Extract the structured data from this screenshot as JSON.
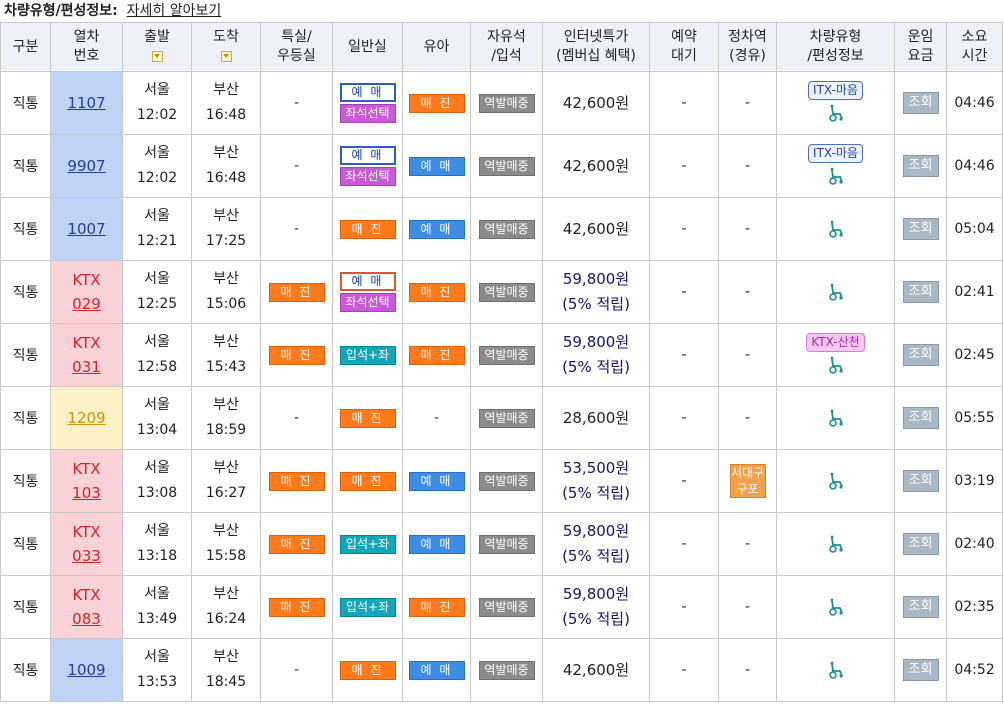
{
  "header": {
    "title": "차량유형/편성정보:",
    "detail_link": "자세히 알아보기"
  },
  "columns": {
    "type": "구분",
    "train_no_1": "열차",
    "train_no_2": "번호",
    "depart": "출발",
    "arrive": "도착",
    "special_1": "특실/",
    "special_2": "우등실",
    "general": "일반실",
    "infant": "유아",
    "free_1": "자유석",
    "free_2": "/입석",
    "internet_1": "인터넷특가",
    "internet_2": "(멤버십 혜택)",
    "reserve_1": "예약",
    "reserve_2": "대기",
    "stop_1": "정차역",
    "stop_2": "(경유)",
    "vehicle_1": "차량유형",
    "vehicle_2": "/편성정보",
    "fare_1": "운임",
    "fare_2": "요금",
    "duration_1": "소요",
    "duration_2": "시간"
  },
  "labels": {
    "reserve": "예 매",
    "soldout": "매 진",
    "seat_select": "좌석선택",
    "standing_seat": "입석+좌석",
    "onsite": "역발매중",
    "lookup": "조회",
    "dash": "-",
    "points": "(5% 적립)",
    "wheelchair_icon": "wheelchair-icon"
  },
  "colors": {
    "itx_bg": "#bfd3f5",
    "ktx_bg": "#f8d2d7",
    "mugunghwa_bg": "#fdf1c6",
    "soldout": "#ff7a1a",
    "reserve": "#3d8de4"
  },
  "rows": [
    {
      "kind": "직통",
      "line1": "",
      "line2": "1107",
      "class": "itx",
      "dep_station": "서울",
      "dep_time": "12:02",
      "arr_station": "부산",
      "arr_time": "16:48",
      "special": "-",
      "general": "reserve_outline_seat",
      "infant": "soldout",
      "free": "onsite",
      "price": "42,600원",
      "points": "",
      "waitlist": "-",
      "via": "-",
      "vehicle_badge": "ITX-마음",
      "vehicle_badge_type": "itx",
      "duration": "04:46"
    },
    {
      "kind": "직통",
      "line1": "",
      "line2": "9907",
      "class": "itx",
      "dep_station": "서울",
      "dep_time": "12:02",
      "arr_station": "부산",
      "arr_time": "16:48",
      "special": "-",
      "general": "reserve_outline_seat",
      "infant": "reserve",
      "free": "onsite",
      "price": "42,600원",
      "points": "",
      "waitlist": "-",
      "via": "-",
      "vehicle_badge": "ITX-마음",
      "vehicle_badge_type": "itx",
      "duration": "04:46"
    },
    {
      "kind": "직통",
      "line1": "",
      "line2": "1007",
      "class": "itx",
      "dep_station": "서울",
      "dep_time": "12:21",
      "arr_station": "부산",
      "arr_time": "17:25",
      "special": "-",
      "general": "soldout",
      "infant": "reserve",
      "free": "onsite",
      "price": "42,600원",
      "points": "",
      "waitlist": "-",
      "via": "-",
      "vehicle_badge": "",
      "vehicle_badge_type": "",
      "duration": "05:04"
    },
    {
      "kind": "직통",
      "line1": "KTX",
      "line2": "029",
      "class": "ktx",
      "dep_station": "서울",
      "dep_time": "12:25",
      "arr_station": "부산",
      "arr_time": "15:06",
      "special": "soldout",
      "general": "reserve_outline_red_seat",
      "infant": "soldout",
      "free": "onsite",
      "price": "59,800원",
      "points": "(5% 적립)",
      "waitlist": "-",
      "via": "-",
      "vehicle_badge": "",
      "vehicle_badge_type": "",
      "duration": "02:41"
    },
    {
      "kind": "직통",
      "line1": "KTX",
      "line2": "031",
      "class": "ktx",
      "dep_station": "서울",
      "dep_time": "12:58",
      "arr_station": "부산",
      "arr_time": "15:43",
      "special": "soldout",
      "general": "standing",
      "infant": "soldout",
      "free": "onsite",
      "price": "59,800원",
      "points": "(5% 적립)",
      "waitlist": "-",
      "via": "-",
      "vehicle_badge": "KTX-산천",
      "vehicle_badge_type": "ktx",
      "duration": "02:45"
    },
    {
      "kind": "직통",
      "line1": "",
      "line2": "1209",
      "class": "mugung",
      "dep_station": "서울",
      "dep_time": "13:04",
      "arr_station": "부산",
      "arr_time": "18:59",
      "special": "-",
      "general": "soldout",
      "infant": "-",
      "free": "onsite",
      "price": "28,600원",
      "points": "",
      "waitlist": "-",
      "via": "-",
      "vehicle_badge": "",
      "vehicle_badge_type": "",
      "duration": "05:55"
    },
    {
      "kind": "직통",
      "line1": "KTX",
      "line2": "103",
      "class": "ktx",
      "dep_station": "서울",
      "dep_time": "13:08",
      "arr_station": "부산",
      "arr_time": "16:27",
      "special": "soldout",
      "general": "soldout",
      "infant": "reserve",
      "free": "onsite",
      "price": "53,500원",
      "points": "(5% 적립)",
      "waitlist": "-",
      "via": "서대구|구포",
      "vehicle_badge": "",
      "vehicle_badge_type": "",
      "duration": "03:19"
    },
    {
      "kind": "직통",
      "line1": "KTX",
      "line2": "033",
      "class": "ktx",
      "dep_station": "서울",
      "dep_time": "13:18",
      "arr_station": "부산",
      "arr_time": "15:58",
      "special": "soldout",
      "general": "standing",
      "infant": "reserve",
      "free": "onsite",
      "price": "59,800원",
      "points": "(5% 적립)",
      "waitlist": "-",
      "via": "-",
      "vehicle_badge": "",
      "vehicle_badge_type": "",
      "duration": "02:40"
    },
    {
      "kind": "직통",
      "line1": "KTX",
      "line2": "083",
      "class": "ktx",
      "dep_station": "서울",
      "dep_time": "13:49",
      "arr_station": "부산",
      "arr_time": "16:24",
      "special": "soldout",
      "general": "standing",
      "infant": "soldout",
      "free": "onsite",
      "price": "59,800원",
      "points": "(5% 적립)",
      "waitlist": "-",
      "via": "-",
      "vehicle_badge": "",
      "vehicle_badge_type": "",
      "duration": "02:35"
    },
    {
      "kind": "직통",
      "line1": "",
      "line2": "1009",
      "class": "itx",
      "dep_station": "서울",
      "dep_time": "13:53",
      "arr_station": "부산",
      "arr_time": "18:45",
      "special": "-",
      "general": "soldout",
      "infant": "reserve",
      "free": "onsite",
      "price": "42,600원",
      "points": "",
      "waitlist": "-",
      "via": "-",
      "vehicle_badge": "",
      "vehicle_badge_type": "",
      "duration": "04:52"
    }
  ]
}
